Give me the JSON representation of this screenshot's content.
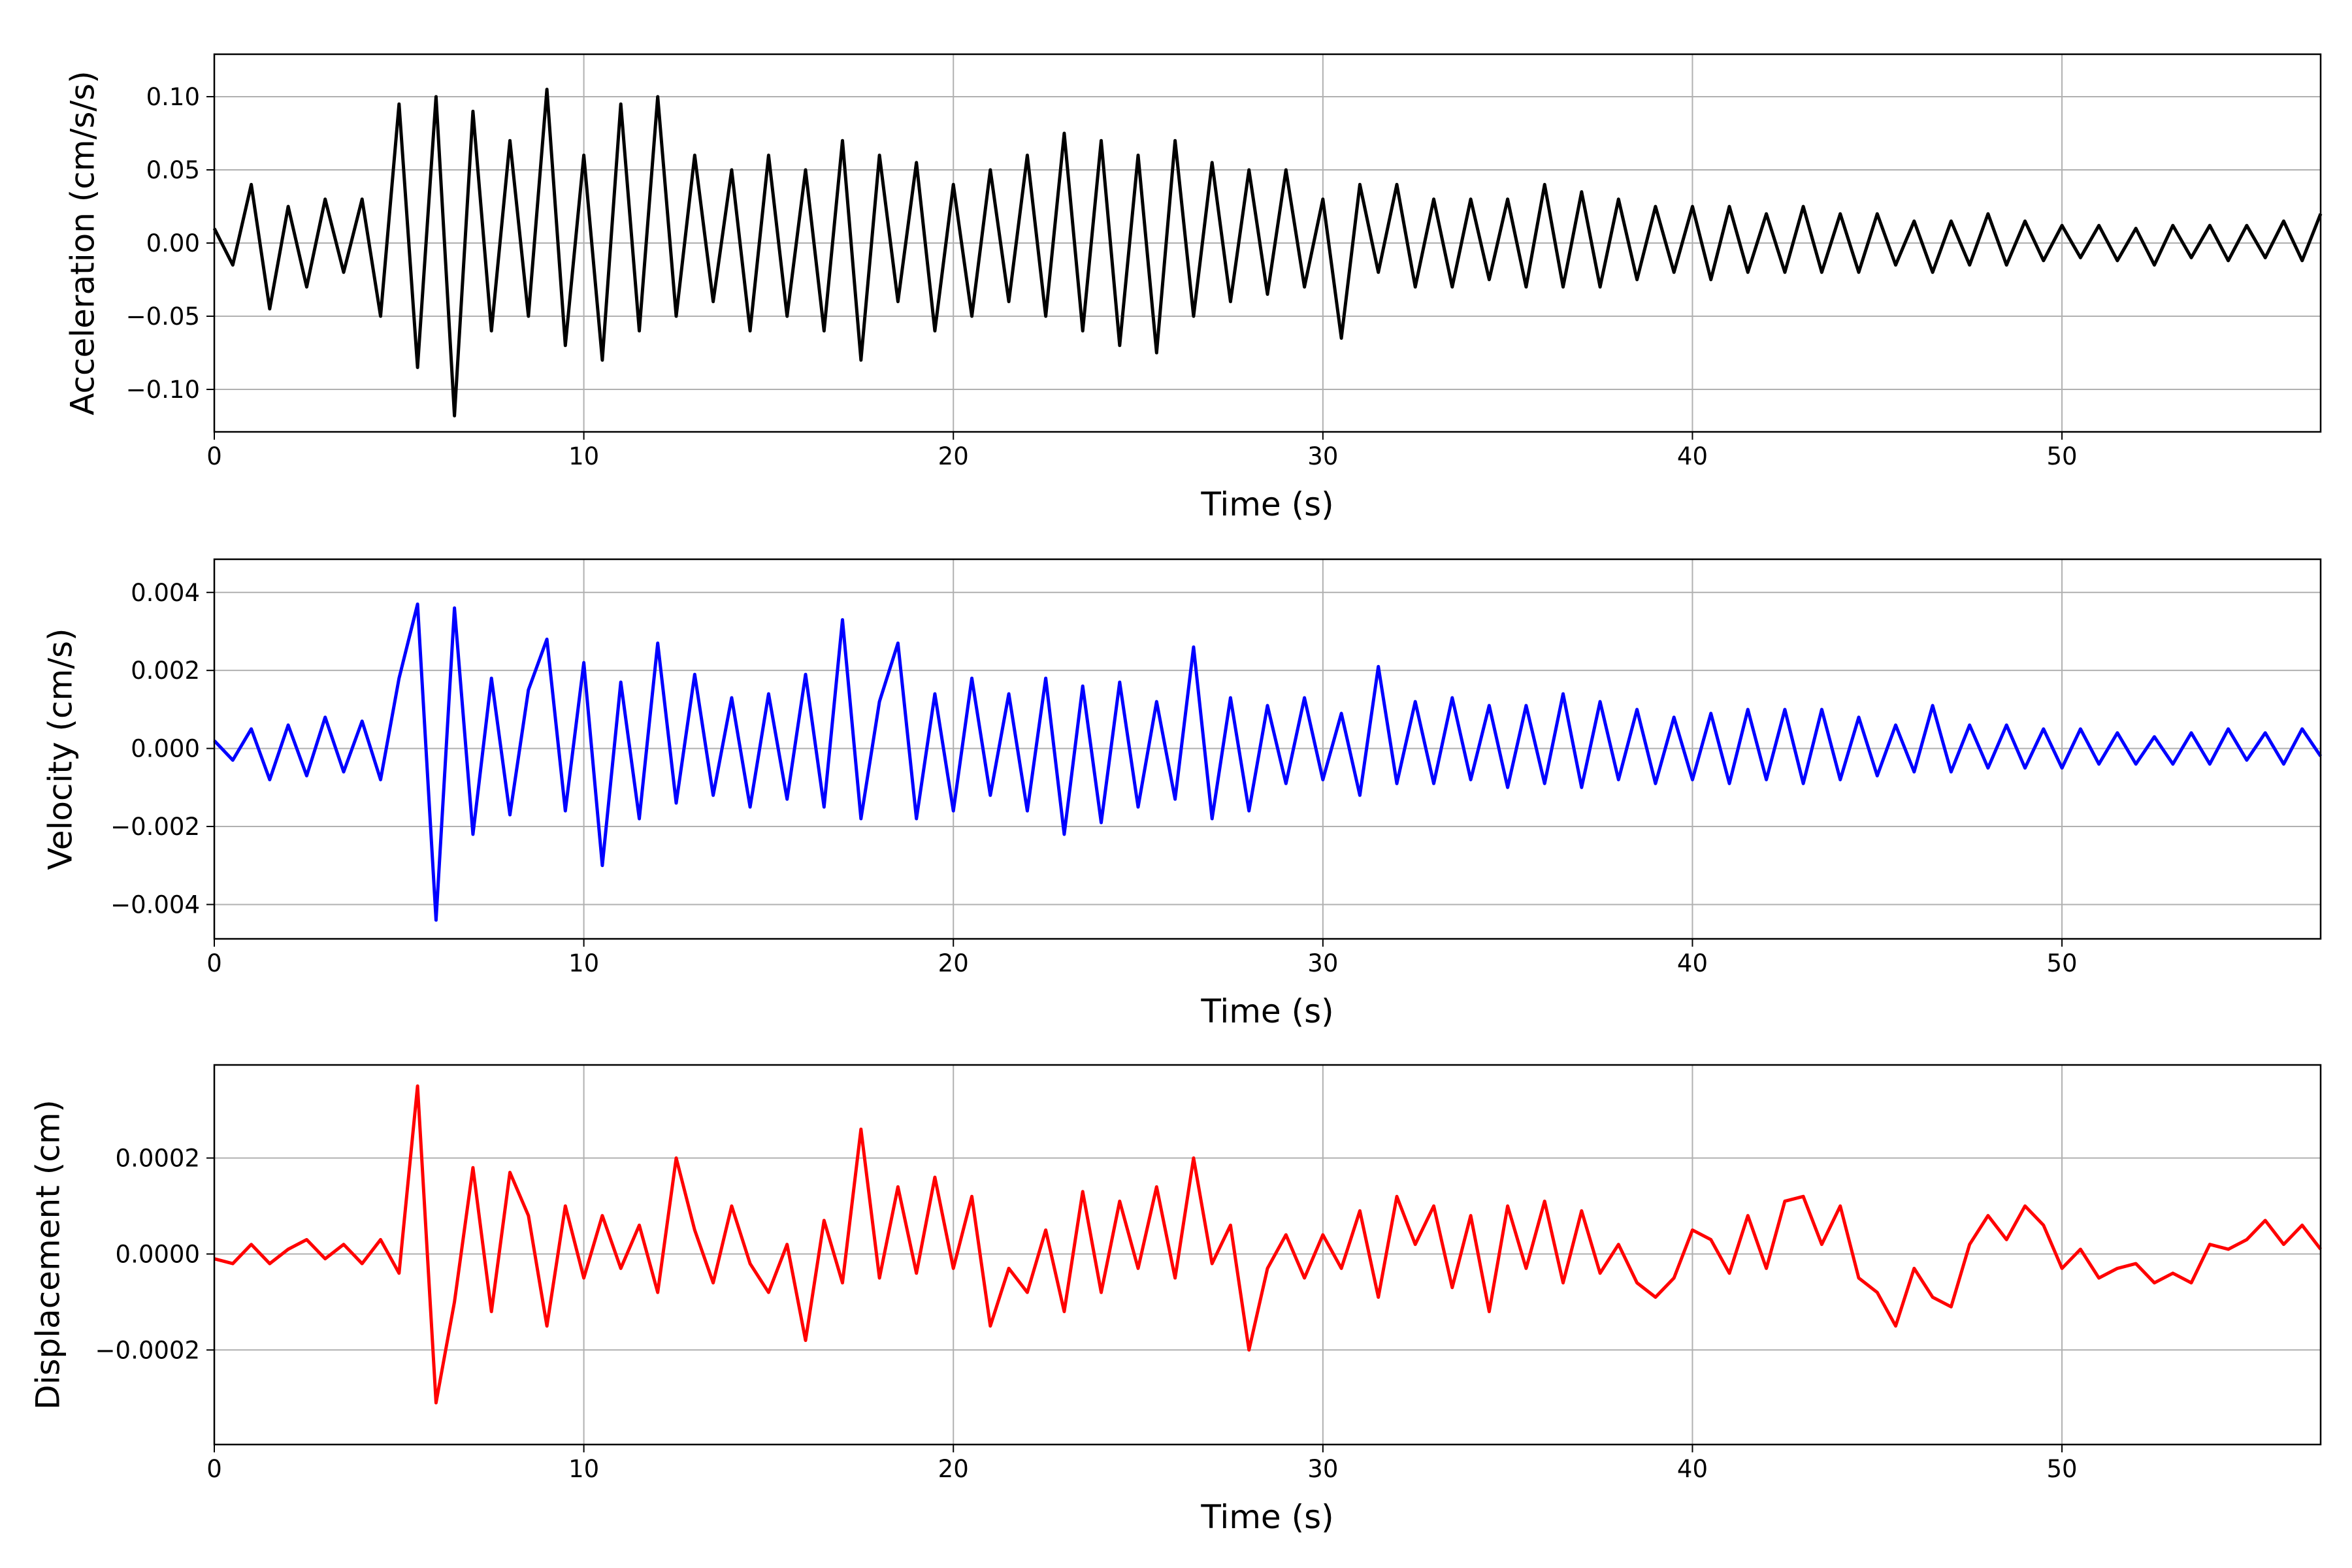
{
  "chart_data": [
    {
      "type": "line",
      "ylabel": "Acceleration (cm/s/s)",
      "xlabel": "Time (s)",
      "color": "#000000",
      "grid": true,
      "xlim": [
        0,
        57
      ],
      "xticks": [
        0,
        10,
        20,
        30,
        40,
        50
      ],
      "ylim": [
        -0.129,
        0.129
      ],
      "yticks": [
        {
          "value": -0.1,
          "label": "−0.10"
        },
        {
          "value": -0.05,
          "label": "−0.05"
        },
        {
          "value": 0,
          "label": "0.00"
        },
        {
          "value": 0.05,
          "label": "0.05"
        },
        {
          "value": 0.1,
          "label": "0.10"
        }
      ],
      "x": [
        0,
        0.5,
        1,
        1.5,
        2,
        2.5,
        3,
        3.5,
        4,
        4.5,
        5,
        5.5,
        6,
        6.5,
        7,
        7.5,
        8,
        8.5,
        9,
        9.5,
        10,
        10.5,
        11,
        11.5,
        12,
        12.5,
        13,
        13.5,
        14,
        14.5,
        15,
        15.5,
        16,
        16.5,
        17,
        17.5,
        18,
        18.5,
        19,
        19.5,
        20,
        20.5,
        21,
        21.5,
        22,
        22.5,
        23,
        23.5,
        24,
        24.5,
        25,
        25.5,
        26,
        26.5,
        27,
        27.5,
        28,
        28.5,
        29,
        29.5,
        30,
        30.5,
        31,
        31.5,
        32,
        32.5,
        33,
        33.5,
        34,
        34.5,
        35,
        35.5,
        36,
        36.5,
        37,
        37.5,
        38,
        38.5,
        39,
        39.5,
        40,
        40.5,
        41,
        41.5,
        42,
        42.5,
        43,
        43.5,
        44,
        44.5,
        45,
        45.5,
        46,
        46.5,
        47,
        47.5,
        48,
        48.5,
        49,
        49.5,
        50,
        50.5,
        51,
        51.5,
        52,
        52.5,
        53,
        53.5,
        54,
        54.5,
        55,
        55.5,
        56,
        56.5,
        57
      ],
      "values": [
        0.01,
        -0.015,
        0.04,
        -0.045,
        0.025,
        -0.03,
        0.03,
        -0.02,
        0.03,
        -0.05,
        0.095,
        -0.085,
        0.1,
        -0.118,
        0.09,
        -0.06,
        0.07,
        -0.05,
        0.105,
        -0.07,
        0.06,
        -0.08,
        0.095,
        -0.06,
        0.1,
        -0.05,
        0.06,
        -0.04,
        0.05,
        -0.06,
        0.06,
        -0.05,
        0.05,
        -0.06,
        0.07,
        -0.08,
        0.06,
        -0.04,
        0.055,
        -0.06,
        0.04,
        -0.05,
        0.05,
        -0.04,
        0.06,
        -0.05,
        0.075,
        -0.06,
        0.07,
        -0.07,
        0.06,
        -0.075,
        0.07,
        -0.05,
        0.055,
        -0.04,
        0.05,
        -0.035,
        0.05,
        -0.03,
        0.03,
        -0.065,
        0.04,
        -0.02,
        0.04,
        -0.03,
        0.03,
        -0.03,
        0.03,
        -0.025,
        0.03,
        -0.03,
        0.04,
        -0.03,
        0.035,
        -0.03,
        0.03,
        -0.025,
        0.025,
        -0.02,
        0.025,
        -0.025,
        0.025,
        -0.02,
        0.02,
        -0.02,
        0.025,
        -0.02,
        0.02,
        -0.02,
        0.02,
        -0.015,
        0.015,
        -0.02,
        0.015,
        -0.015,
        0.02,
        -0.015,
        0.015,
        -0.012,
        0.012,
        -0.01,
        0.012,
        -0.012,
        0.01,
        -0.015,
        0.012,
        -0.01,
        0.012,
        -0.012,
        0.012,
        -0.01,
        0.015,
        -0.012,
        0.02
      ]
    },
    {
      "type": "line",
      "ylabel": "Velocity (cm/s)",
      "xlabel": "Time (s)",
      "color": "#0000ff",
      "grid": true,
      "xlim": [
        0,
        57
      ],
      "xticks": [
        0,
        10,
        20,
        30,
        40,
        50
      ],
      "ylim": [
        -0.00488,
        0.00485
      ],
      "yticks": [
        {
          "value": -0.004,
          "label": "−0.004"
        },
        {
          "value": -0.002,
          "label": "−0.002"
        },
        {
          "value": 0,
          "label": "0.000"
        },
        {
          "value": 0.002,
          "label": "0.002"
        },
        {
          "value": 0.004,
          "label": "0.004"
        }
      ],
      "x": [
        0,
        0.5,
        1,
        1.5,
        2,
        2.5,
        3,
        3.5,
        4,
        4.5,
        5,
        5.5,
        6,
        6.5,
        7,
        7.5,
        8,
        8.5,
        9,
        9.5,
        10,
        10.5,
        11,
        11.5,
        12,
        12.5,
        13,
        13.5,
        14,
        14.5,
        15,
        15.5,
        16,
        16.5,
        17,
        17.5,
        18,
        18.5,
        19,
        19.5,
        20,
        20.5,
        21,
        21.5,
        22,
        22.5,
        23,
        23.5,
        24,
        24.5,
        25,
        25.5,
        26,
        26.5,
        27,
        27.5,
        28,
        28.5,
        29,
        29.5,
        30,
        30.5,
        31,
        31.5,
        32,
        32.5,
        33,
        33.5,
        34,
        34.5,
        35,
        35.5,
        36,
        36.5,
        37,
        37.5,
        38,
        38.5,
        39,
        39.5,
        40,
        40.5,
        41,
        41.5,
        42,
        42.5,
        43,
        43.5,
        44,
        44.5,
        45,
        45.5,
        46,
        46.5,
        47,
        47.5,
        48,
        48.5,
        49,
        49.5,
        50,
        50.5,
        51,
        51.5,
        52,
        52.5,
        53,
        53.5,
        54,
        54.5,
        55,
        55.5,
        56,
        56.5,
        57
      ],
      "values": [
        0.0002,
        -0.0003,
        0.0005,
        -0.0008,
        0.0006,
        -0.0007,
        0.0008,
        -0.0006,
        0.0007,
        -0.0008,
        0.0018,
        0.0037,
        -0.0044,
        0.0036,
        -0.0022,
        0.0018,
        -0.0017,
        0.0015,
        0.0028,
        -0.0016,
        0.0022,
        -0.003,
        0.0017,
        -0.0018,
        0.0027,
        -0.0014,
        0.0019,
        -0.0012,
        0.0013,
        -0.0015,
        0.0014,
        -0.0013,
        0.0019,
        -0.0015,
        0.0033,
        -0.0018,
        0.0012,
        0.0027,
        -0.0018,
        0.0014,
        -0.0016,
        0.0018,
        -0.0012,
        0.0014,
        -0.0016,
        0.0018,
        -0.0022,
        0.0016,
        -0.0019,
        0.0017,
        -0.0015,
        0.0012,
        -0.0013,
        0.0026,
        -0.0018,
        0.0013,
        -0.0016,
        0.0011,
        -0.0009,
        0.0013,
        -0.0008,
        0.0009,
        -0.0012,
        0.0021,
        -0.0009,
        0.0012,
        -0.0009,
        0.0013,
        -0.0008,
        0.0011,
        -0.001,
        0.0011,
        -0.0009,
        0.0014,
        -0.001,
        0.0012,
        -0.0008,
        0.001,
        -0.0009,
        0.0008,
        -0.0008,
        0.0009,
        -0.0009,
        0.001,
        -0.0008,
        0.001,
        -0.0009,
        0.001,
        -0.0008,
        0.0008,
        -0.0007,
        0.0006,
        -0.0006,
        0.0011,
        -0.0006,
        0.0006,
        -0.0005,
        0.0006,
        -0.0005,
        0.0005,
        -0.0005,
        0.0005,
        -0.0004,
        0.0004,
        -0.0004,
        0.0003,
        -0.0004,
        0.0004,
        -0.0004,
        0.0005,
        -0.0003,
        0.0004,
        -0.0004,
        0.0005,
        -0.0002
      ]
    },
    {
      "type": "line",
      "ylabel": "Displacement (cm)",
      "xlabel": "Time (s)",
      "color": "#ff0000",
      "grid": true,
      "xlim": [
        0,
        57
      ],
      "xticks": [
        0,
        10,
        20,
        30,
        40,
        50
      ],
      "ylim": [
        -0.000397,
        0.000394
      ],
      "yticks": [
        {
          "value": -0.0002,
          "label": "−0.0002"
        },
        {
          "value": 0,
          "label": "0.0000"
        },
        {
          "value": 0.0002,
          "label": "0.0002"
        }
      ],
      "x": [
        0,
        0.5,
        1,
        1.5,
        2,
        2.5,
        3,
        3.5,
        4,
        4.5,
        5,
        5.5,
        6,
        6.5,
        7,
        7.5,
        8,
        8.5,
        9,
        9.5,
        10,
        10.5,
        11,
        11.5,
        12,
        12.5,
        13,
        13.5,
        14,
        14.5,
        15,
        15.5,
        16,
        16.5,
        17,
        17.5,
        18,
        18.5,
        19,
        19.5,
        20,
        20.5,
        21,
        21.5,
        22,
        22.5,
        23,
        23.5,
        24,
        24.5,
        25,
        25.5,
        26,
        26.5,
        27,
        27.5,
        28,
        28.5,
        29,
        29.5,
        30,
        30.5,
        31,
        31.5,
        32,
        32.5,
        33,
        33.5,
        34,
        34.5,
        35,
        35.5,
        36,
        36.5,
        37,
        37.5,
        38,
        38.5,
        39,
        39.5,
        40,
        40.5,
        41,
        41.5,
        42,
        42.5,
        43,
        43.5,
        44,
        44.5,
        45,
        45.5,
        46,
        46.5,
        47,
        47.5,
        48,
        48.5,
        49,
        49.5,
        50,
        50.5,
        51,
        51.5,
        52,
        52.5,
        53,
        53.5,
        54,
        54.5,
        55,
        55.5,
        56,
        56.5,
        57
      ],
      "values": [
        -1e-05,
        -2e-05,
        2e-05,
        -2e-05,
        1e-05,
        3e-05,
        -1e-05,
        2e-05,
        -2e-05,
        3e-05,
        -4e-05,
        0.00035,
        -0.00031,
        -0.0001,
        0.00018,
        -0.00012,
        0.00017,
        8e-05,
        -0.00015,
        0.0001,
        -5e-05,
        8e-05,
        -3e-05,
        6e-05,
        -8e-05,
        0.0002,
        5e-05,
        -6e-05,
        0.0001,
        -2e-05,
        -8e-05,
        2e-05,
        -0.00018,
        7e-05,
        -6e-05,
        0.00026,
        -5e-05,
        0.00014,
        -4e-05,
        0.00016,
        -3e-05,
        0.00012,
        -0.00015,
        -3e-05,
        -8e-05,
        5e-05,
        -0.00012,
        0.00013,
        -8e-05,
        0.00011,
        -3e-05,
        0.00014,
        -5e-05,
        0.0002,
        -2e-05,
        6e-05,
        -0.0002,
        -3e-05,
        4e-05,
        -5e-05,
        4e-05,
        -3e-05,
        9e-05,
        -9e-05,
        0.00012,
        2e-05,
        0.0001,
        -7e-05,
        8e-05,
        -0.00012,
        0.0001,
        -3e-05,
        0.00011,
        -6e-05,
        9e-05,
        -4e-05,
        2e-05,
        -6e-05,
        -9e-05,
        -5e-05,
        5e-05,
        3e-05,
        -4e-05,
        8e-05,
        -3e-05,
        0.00011,
        0.00012,
        2e-05,
        0.0001,
        -5e-05,
        -8e-05,
        -0.00015,
        -3e-05,
        -9e-05,
        -0.00011,
        2e-05,
        8e-05,
        3e-05,
        0.0001,
        6e-05,
        -3e-05,
        1e-05,
        -5e-05,
        -3e-05,
        -2e-05,
        -6e-05,
        -4e-05,
        -6e-05,
        2e-05,
        1e-05,
        3e-05,
        7e-05,
        2e-05,
        6e-05,
        1e-05
      ]
    }
  ]
}
